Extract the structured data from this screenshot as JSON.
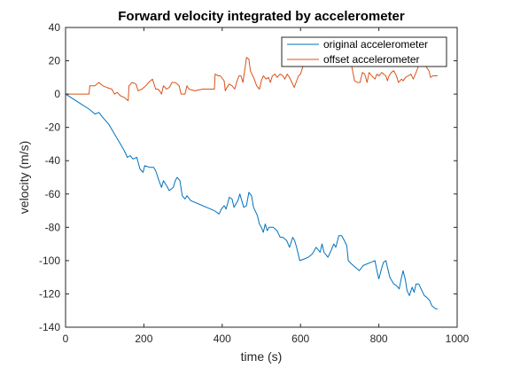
{
  "chart_data": {
    "type": "line",
    "title": "Forward velocity integrated by accelerometer",
    "xlabel": "time (s)",
    "ylabel": "velocity (m/s)",
    "xlim": [
      0,
      1000
    ],
    "ylim": [
      -140,
      40
    ],
    "xticks": [
      "0",
      "200",
      "400",
      "600",
      "800",
      "1000"
    ],
    "yticks": [
      "40",
      "20",
      "0",
      "-20",
      "-40",
      "-60",
      "-80",
      "-100",
      "-120",
      "-140"
    ],
    "grid": false,
    "legend_position": "top-right",
    "series": [
      {
        "name": "original accelerometer",
        "color": "#0072bd",
        "points": [
          [
            0,
            0
          ],
          [
            20,
            -3
          ],
          [
            40,
            -6
          ],
          [
            60,
            -9
          ],
          [
            75,
            -12
          ],
          [
            85,
            -11
          ],
          [
            95,
            -14
          ],
          [
            110,
            -18
          ],
          [
            125,
            -24
          ],
          [
            140,
            -30
          ],
          [
            150,
            -34
          ],
          [
            158,
            -38
          ],
          [
            165,
            -37
          ],
          [
            172,
            -39
          ],
          [
            182,
            -38
          ],
          [
            190,
            -45
          ],
          [
            198,
            -47
          ],
          [
            202,
            -43
          ],
          [
            215,
            -44
          ],
          [
            225,
            -44
          ],
          [
            230,
            -46
          ],
          [
            240,
            -53
          ],
          [
            245,
            -56
          ],
          [
            250,
            -52
          ],
          [
            258,
            -55
          ],
          [
            265,
            -58
          ],
          [
            275,
            -56
          ],
          [
            280,
            -52
          ],
          [
            285,
            -50
          ],
          [
            292,
            -52
          ],
          [
            298,
            -61
          ],
          [
            305,
            -63
          ],
          [
            310,
            -61
          ],
          [
            320,
            -64
          ],
          [
            340,
            -66
          ],
          [
            360,
            -68
          ],
          [
            380,
            -70
          ],
          [
            392,
            -72
          ],
          [
            398,
            -69
          ],
          [
            405,
            -67
          ],
          [
            410,
            -69
          ],
          [
            418,
            -62
          ],
          [
            425,
            -63
          ],
          [
            430,
            -68
          ],
          [
            440,
            -64
          ],
          [
            445,
            -60
          ],
          [
            450,
            -64
          ],
          [
            455,
            -68
          ],
          [
            462,
            -67
          ],
          [
            468,
            -59
          ],
          [
            475,
            -61
          ],
          [
            480,
            -68
          ],
          [
            490,
            -73
          ],
          [
            495,
            -78
          ],
          [
            500,
            -80
          ],
          [
            505,
            -83
          ],
          [
            510,
            -78
          ],
          [
            515,
            -82
          ],
          [
            520,
            -80
          ],
          [
            530,
            -80
          ],
          [
            540,
            -82
          ],
          [
            548,
            -86
          ],
          [
            555,
            -86
          ],
          [
            565,
            -88
          ],
          [
            572,
            -92
          ],
          [
            580,
            -86
          ],
          [
            585,
            -88
          ],
          [
            590,
            -92
          ],
          [
            598,
            -100
          ],
          [
            610,
            -99
          ],
          [
            620,
            -98
          ],
          [
            630,
            -96
          ],
          [
            640,
            -92
          ],
          [
            650,
            -95
          ],
          [
            655,
            -90
          ],
          [
            660,
            -95
          ],
          [
            670,
            -98
          ],
          [
            678,
            -94
          ],
          [
            685,
            -90
          ],
          [
            690,
            -92
          ],
          [
            698,
            -85
          ],
          [
            705,
            -85
          ],
          [
            712,
            -88
          ],
          [
            718,
            -91
          ],
          [
            722,
            -100
          ],
          [
            730,
            -102
          ],
          [
            740,
            -104
          ],
          [
            750,
            -106
          ],
          [
            760,
            -103
          ],
          [
            770,
            -102
          ],
          [
            780,
            -101
          ],
          [
            790,
            -100
          ],
          [
            795,
            -106
          ],
          [
            800,
            -111
          ],
          [
            808,
            -104
          ],
          [
            812,
            -101
          ],
          [
            818,
            -100
          ],
          [
            822,
            -104
          ],
          [
            828,
            -110
          ],
          [
            838,
            -114
          ],
          [
            845,
            -115
          ],
          [
            852,
            -117
          ],
          [
            858,
            -110
          ],
          [
            862,
            -106
          ],
          [
            868,
            -112
          ],
          [
            872,
            -118
          ],
          [
            878,
            -121
          ],
          [
            885,
            -116
          ],
          [
            890,
            -119
          ],
          [
            895,
            -114
          ],
          [
            902,
            -114
          ],
          [
            910,
            -118
          ],
          [
            916,
            -121
          ],
          [
            922,
            -122
          ],
          [
            930,
            -124
          ],
          [
            935,
            -127
          ],
          [
            945,
            -129
          ],
          [
            950,
            -129
          ]
        ]
      },
      {
        "name": "offset accelerometer",
        "color": "#d95319",
        "points": [
          [
            0,
            0
          ],
          [
            10,
            0
          ],
          [
            30,
            0
          ],
          [
            60,
            0
          ],
          [
            62,
            5
          ],
          [
            70,
            5
          ],
          [
            75,
            5
          ],
          [
            80,
            6
          ],
          [
            85,
            7
          ],
          [
            95,
            5
          ],
          [
            105,
            4
          ],
          [
            118,
            3
          ],
          [
            125,
            0
          ],
          [
            132,
            1
          ],
          [
            140,
            -1
          ],
          [
            150,
            -2
          ],
          [
            160,
            -4
          ],
          [
            162,
            5
          ],
          [
            170,
            7
          ],
          [
            180,
            6
          ],
          [
            185,
            2
          ],
          [
            195,
            3
          ],
          [
            205,
            5
          ],
          [
            212,
            7
          ],
          [
            222,
            9
          ],
          [
            230,
            3
          ],
          [
            236,
            3
          ],
          [
            240,
            2
          ],
          [
            245,
            0
          ],
          [
            250,
            5
          ],
          [
            258,
            3
          ],
          [
            265,
            4
          ],
          [
            272,
            7
          ],
          [
            280,
            7
          ],
          [
            285,
            6
          ],
          [
            290,
            5
          ],
          [
            295,
            0
          ],
          [
            305,
            0
          ],
          [
            310,
            5
          ],
          [
            315,
            3
          ],
          [
            330,
            2
          ],
          [
            350,
            3
          ],
          [
            370,
            3
          ],
          [
            380,
            3
          ],
          [
            382,
            12
          ],
          [
            390,
            11
          ],
          [
            395,
            11
          ],
          [
            405,
            8
          ],
          [
            408,
            2
          ],
          [
            412,
            4
          ],
          [
            418,
            6
          ],
          [
            425,
            5
          ],
          [
            432,
            3
          ],
          [
            438,
            8
          ],
          [
            443,
            11
          ],
          [
            448,
            11
          ],
          [
            453,
            7
          ],
          [
            458,
            15
          ],
          [
            462,
            22
          ],
          [
            468,
            21
          ],
          [
            472,
            14
          ],
          [
            478,
            11
          ],
          [
            482,
            9
          ],
          [
            488,
            5
          ],
          [
            495,
            3
          ],
          [
            500,
            8
          ],
          [
            505,
            11
          ],
          [
            512,
            9
          ],
          [
            518,
            10
          ],
          [
            523,
            7
          ],
          [
            528,
            11
          ],
          [
            535,
            12
          ],
          [
            540,
            10
          ],
          [
            548,
            12
          ],
          [
            555,
            11
          ],
          [
            560,
            9
          ],
          [
            566,
            12
          ],
          [
            572,
            10
          ],
          [
            578,
            7
          ],
          [
            584,
            4
          ],
          [
            595,
            11
          ],
          [
            600,
            12
          ],
          [
            608,
            18
          ],
          [
            615,
            22
          ],
          [
            620,
            20
          ],
          [
            628,
            22
          ],
          [
            635,
            20
          ],
          [
            640,
            18
          ],
          [
            648,
            20
          ],
          [
            656,
            19
          ],
          [
            660,
            21
          ],
          [
            668,
            19
          ],
          [
            676,
            18
          ],
          [
            685,
            20
          ],
          [
            692,
            22
          ],
          [
            700,
            19
          ],
          [
            706,
            20
          ],
          [
            712,
            20
          ],
          [
            718,
            22
          ],
          [
            722,
            21
          ],
          [
            728,
            20
          ],
          [
            733,
            14
          ],
          [
            738,
            8
          ],
          [
            745,
            7
          ],
          [
            752,
            7
          ],
          [
            758,
            13
          ],
          [
            764,
            12
          ],
          [
            770,
            7
          ],
          [
            775,
            13
          ],
          [
            782,
            11
          ],
          [
            790,
            9
          ],
          [
            795,
            12
          ],
          [
            800,
            11
          ],
          [
            808,
            13
          ],
          [
            812,
            12
          ],
          [
            818,
            11
          ],
          [
            822,
            8
          ],
          [
            826,
            11
          ],
          [
            832,
            13
          ],
          [
            838,
            14
          ],
          [
            845,
            11
          ],
          [
            850,
            7
          ],
          [
            858,
            9
          ],
          [
            862,
            8
          ],
          [
            868,
            10
          ],
          [
            875,
            11
          ],
          [
            882,
            12
          ],
          [
            888,
            9
          ],
          [
            895,
            13
          ],
          [
            900,
            16
          ],
          [
            905,
            20
          ],
          [
            910,
            18
          ],
          [
            918,
            20
          ],
          [
            922,
            16
          ],
          [
            928,
            14
          ],
          [
            932,
            10
          ],
          [
            938,
            11
          ],
          [
            945,
            11
          ],
          [
            950,
            11
          ]
        ]
      }
    ]
  }
}
